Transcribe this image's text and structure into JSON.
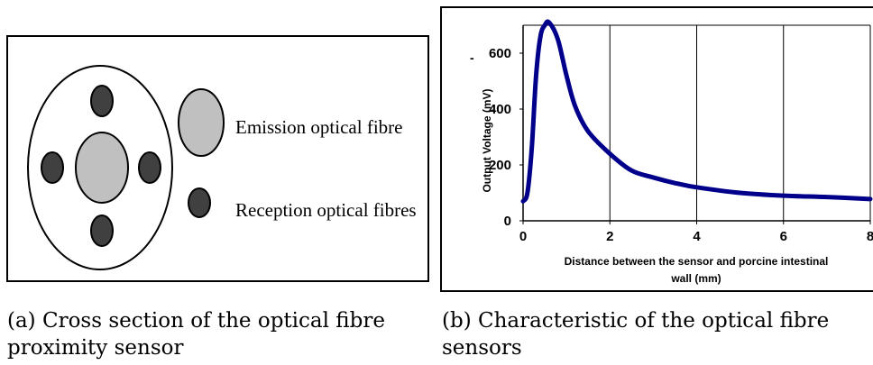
{
  "figure_a": {
    "label_emission": "Emission optical fibre",
    "label_reception": "Reception optical fibres",
    "caption_line1": "(a) Cross section of the optical fibre",
    "caption_line2": "proximity sensor",
    "colors": {
      "emission_fill": "#c0c0c0",
      "reception_fill": "#404040",
      "outline": "#000000"
    }
  },
  "figure_b": {
    "caption_line1": "(b) Characteristic of the optical fibre",
    "caption_line2": "sensors",
    "stray_mark": "-"
  },
  "chart_data": {
    "type": "line",
    "title": "",
    "xlabel_line1": "Distance between the sensor and porcine intestinal",
    "xlabel_line2": "wall (mm)",
    "ylabel": "Output Voltage (mV)",
    "xlim": [
      0,
      8
    ],
    "ylim": [
      0,
      700
    ],
    "x_ticks": [
      0,
      2,
      4,
      6,
      8
    ],
    "y_ticks": [
      0,
      200,
      400,
      600
    ],
    "grid": true,
    "line_color": "#00008b",
    "series": [
      {
        "x": [
          0,
          0.1,
          0.2,
          0.3,
          0.4,
          0.5,
          0.6,
          0.8,
          1.0,
          1.2,
          1.5,
          2.0,
          2.5,
          3.0,
          3.5,
          4.0,
          5.0,
          6.0,
          7.0,
          8.0
        ],
        "y": [
          70,
          100,
          260,
          520,
          660,
          700,
          710,
          650,
          520,
          410,
          320,
          240,
          180,
          155,
          135,
          120,
          100,
          90,
          85,
          78
        ]
      }
    ]
  }
}
